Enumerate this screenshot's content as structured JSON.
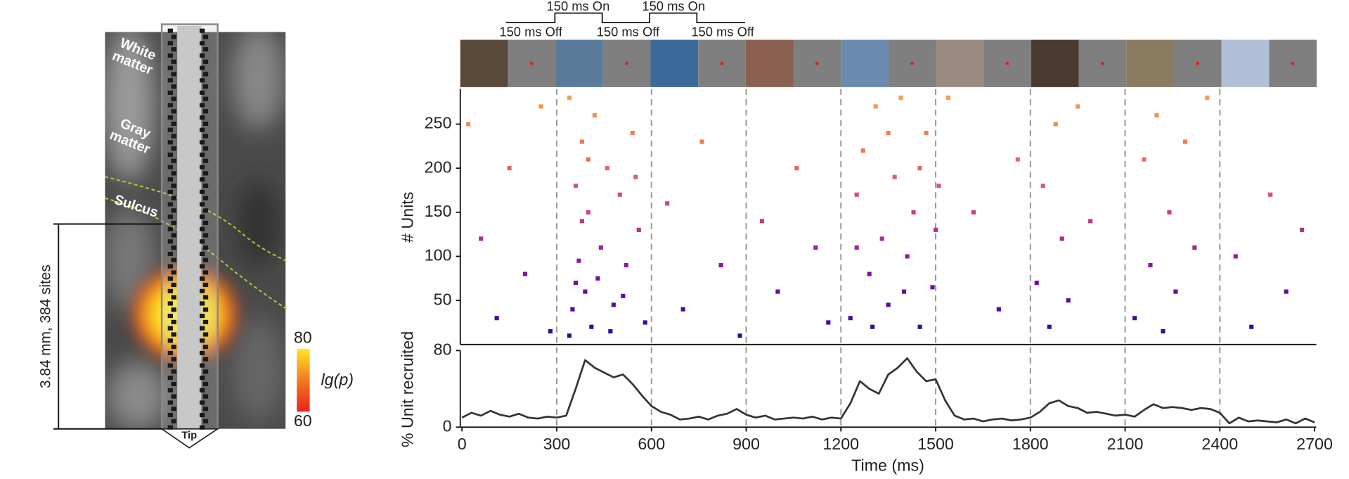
{
  "probe_panel": {
    "region_labels": [
      "White matter",
      "Gray matter",
      "Sulcus"
    ],
    "scale_label": "3.84 mm, 384 sites",
    "tip_label": "Tip",
    "colorbar": {
      "label": "lg(p)",
      "lim": [
        60,
        80
      ],
      "ticks": [
        60,
        80
      ],
      "colors": [
        "#e8231c",
        "#f57a1e",
        "#fde725"
      ]
    }
  },
  "stimulus": {
    "on_label": "150 ms On",
    "off_label": "150 ms Off"
  },
  "chart_data": [
    {
      "type": "scatter",
      "ylabel": "# Units",
      "x": [
        20,
        60,
        110,
        150,
        200,
        250,
        280,
        340,
        350,
        360,
        370,
        380,
        390,
        400,
        410,
        420,
        440,
        460,
        480,
        500,
        520,
        540,
        560,
        580,
        340,
        360,
        380,
        400,
        430,
        470,
        510,
        550,
        650,
        700,
        760,
        820,
        880,
        950,
        1000,
        1060,
        1120,
        1160,
        1230,
        1250,
        1270,
        1290,
        1310,
        1330,
        1350,
        1370,
        1390,
        1410,
        1430,
        1450,
        1470,
        1490,
        1510,
        1540,
        1250,
        1300,
        1350,
        1400,
        1450,
        1500,
        1620,
        1700,
        1760,
        1820,
        1840,
        1860,
        1880,
        1900,
        1920,
        1950,
        1990,
        2130,
        2160,
        2180,
        2200,
        2220,
        2240,
        2260,
        2290,
        2320,
        2360,
        2450,
        2500,
        2560,
        2610,
        2660
      ],
      "values": [
        250,
        120,
        30,
        200,
        80,
        270,
        15,
        280,
        40,
        180,
        95,
        230,
        60,
        150,
        20,
        260,
        110,
        200,
        45,
        170,
        90,
        240,
        130,
        25,
        10,
        70,
        140,
        210,
        75,
        15,
        55,
        190,
        160,
        40,
        230,
        90,
        10,
        140,
        60,
        200,
        110,
        25,
        30,
        170,
        220,
        80,
        270,
        120,
        45,
        190,
        280,
        100,
        150,
        20,
        240,
        65,
        180,
        280,
        110,
        20,
        240,
        60,
        200,
        130,
        150,
        40,
        210,
        70,
        180,
        20,
        250,
        120,
        50,
        270,
        140,
        30,
        210,
        90,
        260,
        15,
        150,
        60,
        230,
        110,
        280,
        100,
        20,
        170,
        60,
        130
      ],
      "colormap": [
        "#1c0a9c",
        "#7a0aa8",
        "#c8398a",
        "#f0705a",
        "#f9a448"
      ],
      "xlim": [
        0,
        2700
      ],
      "ylim": [
        0,
        290
      ],
      "yticks": [
        50,
        100,
        150,
        200,
        250
      ],
      "vlines": [
        300,
        600,
        900,
        1200,
        1500,
        1800,
        2100,
        2400
      ]
    },
    {
      "type": "line",
      "xlabel": "Time (ms)",
      "ylabel": "% Unit recruited",
      "color": "#333333",
      "x": [
        0,
        30,
        60,
        90,
        120,
        150,
        180,
        210,
        240,
        270,
        300,
        330,
        360,
        390,
        420,
        450,
        480,
        510,
        540,
        570,
        600,
        630,
        660,
        690,
        720,
        750,
        780,
        810,
        840,
        870,
        900,
        930,
        960,
        990,
        1020,
        1050,
        1080,
        1110,
        1140,
        1170,
        1200,
        1230,
        1260,
        1290,
        1320,
        1350,
        1380,
        1410,
        1440,
        1470,
        1500,
        1530,
        1560,
        1590,
        1620,
        1650,
        1680,
        1710,
        1740,
        1770,
        1800,
        1830,
        1860,
        1890,
        1920,
        1950,
        1980,
        2010,
        2040,
        2070,
        2100,
        2130,
        2160,
        2190,
        2220,
        2250,
        2280,
        2310,
        2340,
        2370,
        2400,
        2430,
        2460,
        2490,
        2520,
        2550,
        2580,
        2610,
        2640,
        2670,
        2700
      ],
      "values": [
        10,
        15,
        12,
        17,
        13,
        11,
        14,
        10,
        9,
        11,
        10,
        12,
        40,
        70,
        62,
        57,
        52,
        55,
        45,
        33,
        22,
        16,
        13,
        8,
        9,
        11,
        8,
        12,
        14,
        19,
        13,
        10,
        12,
        8,
        9,
        10,
        9,
        11,
        8,
        10,
        9,
        25,
        48,
        40,
        35,
        55,
        62,
        72,
        58,
        48,
        50,
        28,
        12,
        8,
        9,
        6,
        8,
        9,
        7,
        8,
        10,
        16,
        25,
        28,
        22,
        20,
        15,
        16,
        14,
        12,
        13,
        11,
        18,
        24,
        20,
        21,
        20,
        18,
        20,
        19,
        15,
        4,
        10,
        6,
        7,
        6,
        5,
        8,
        4,
        9,
        5
      ],
      "xlim": [
        0,
        2700
      ],
      "xticks": [
        0,
        300,
        600,
        900,
        1200,
        1500,
        1800,
        2100,
        2400,
        2700
      ],
      "ylim": [
        0,
        80
      ],
      "yticks": [
        0,
        80
      ]
    }
  ]
}
